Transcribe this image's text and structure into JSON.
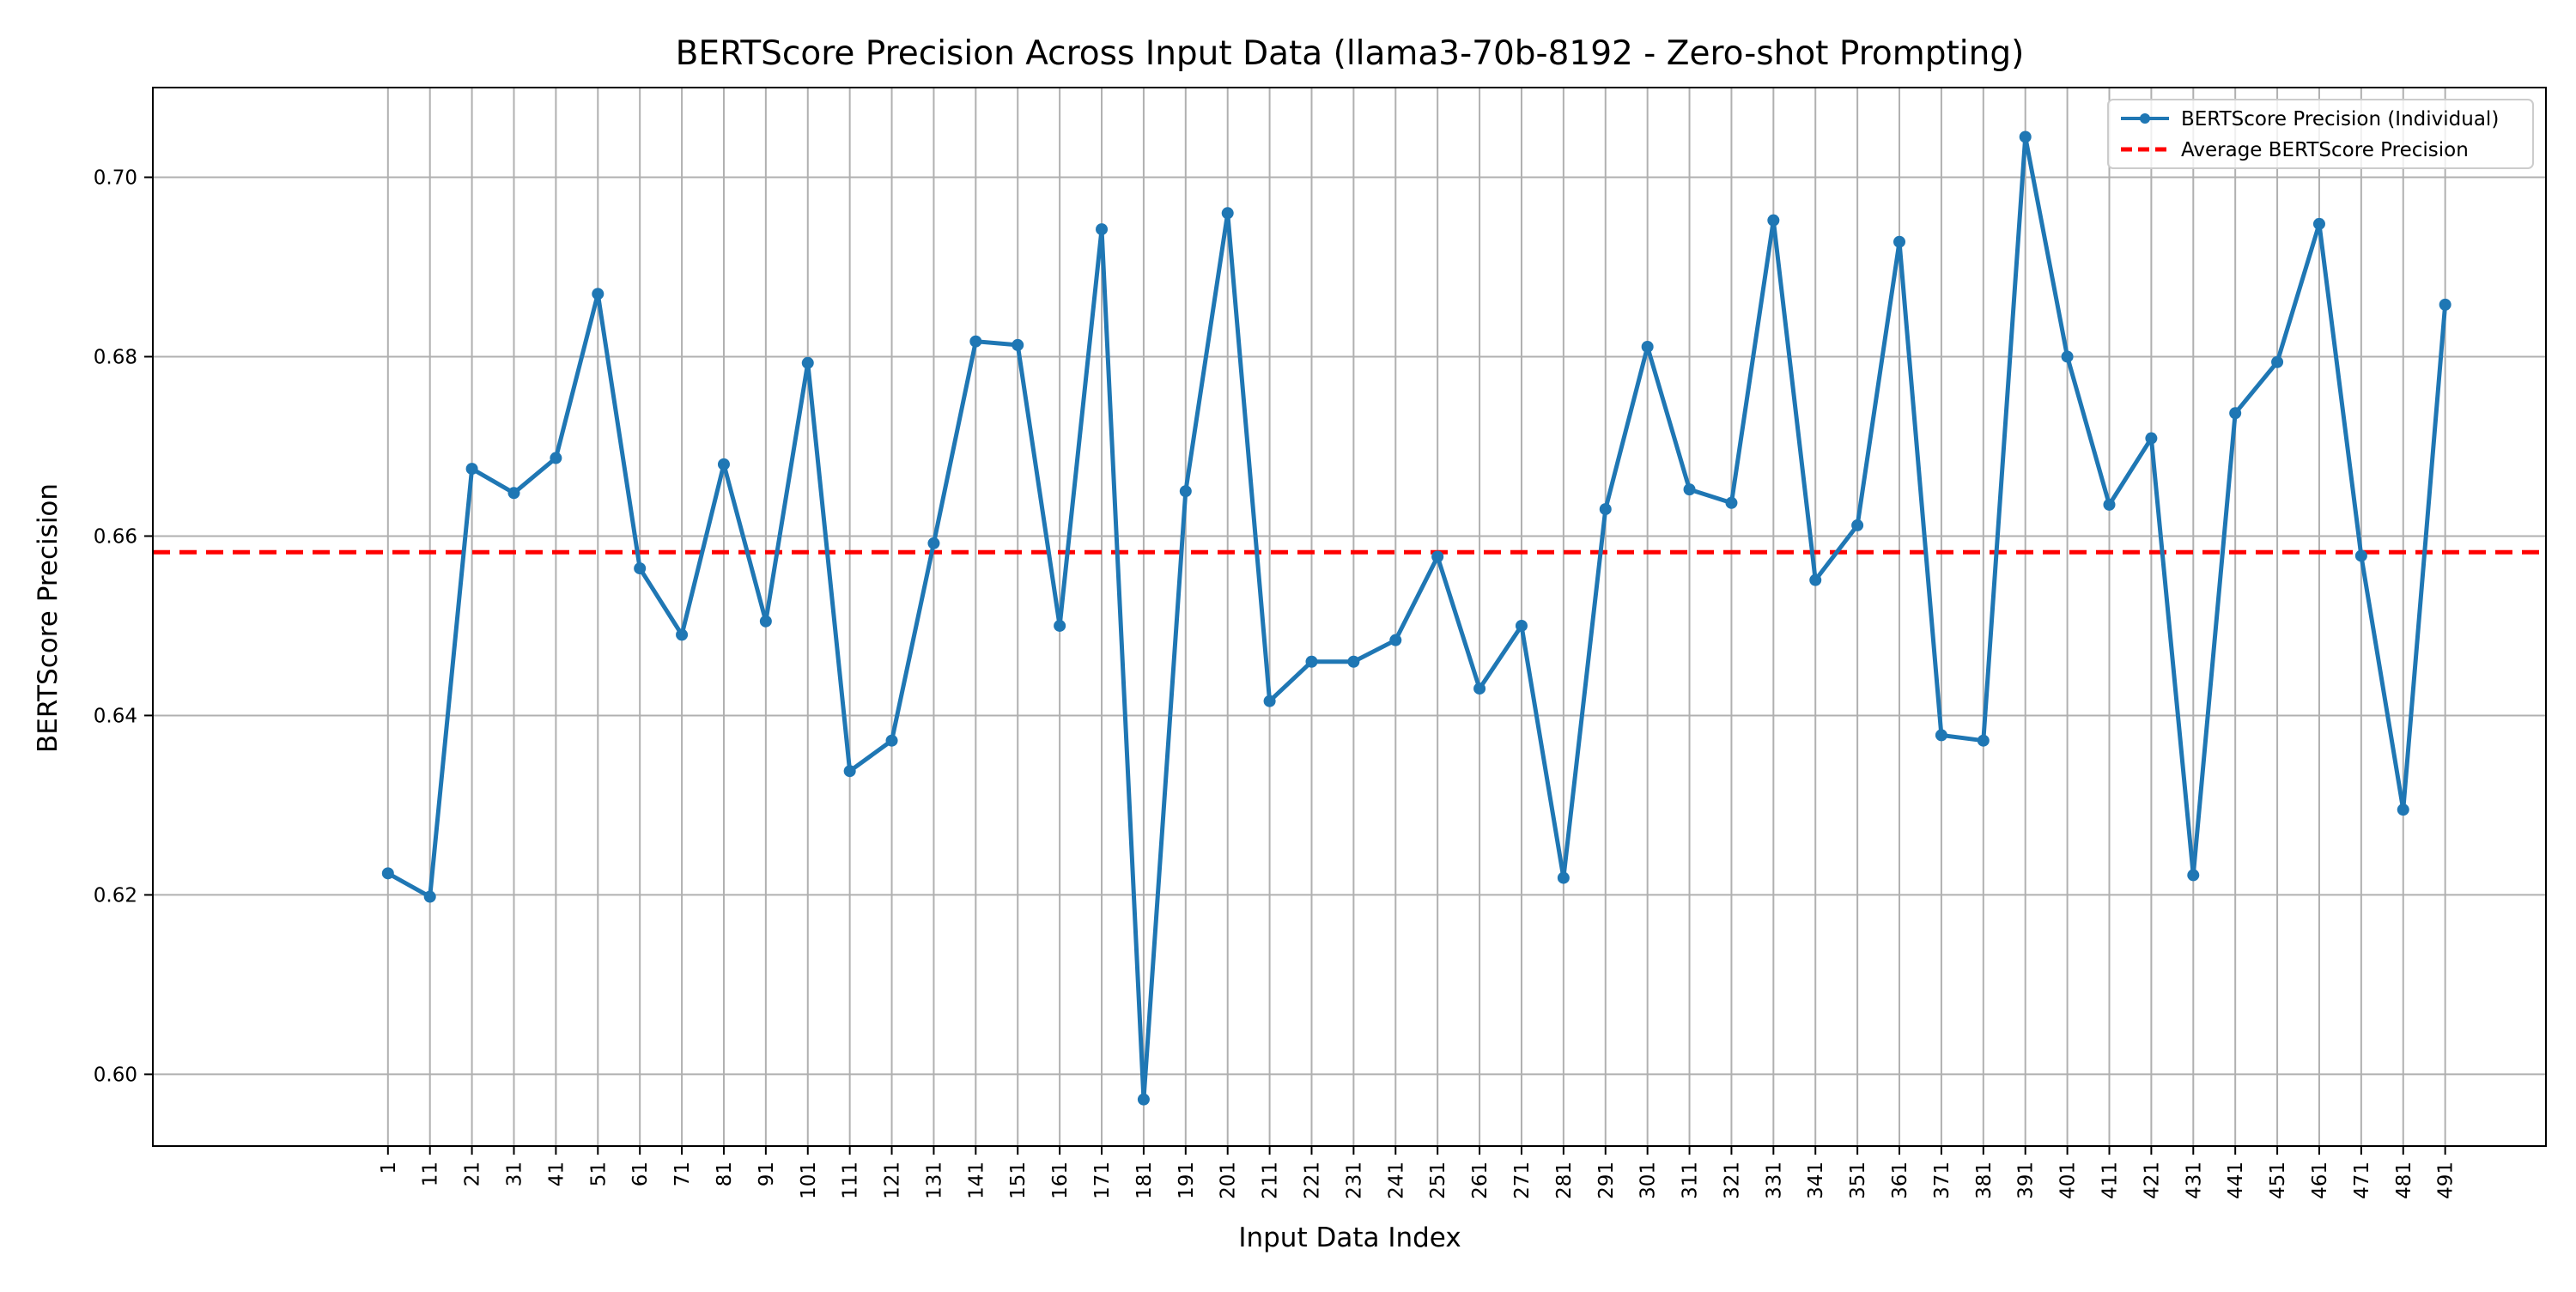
{
  "chart_data": {
    "type": "line",
    "title": "BERTScore Precision Across Input Data (llama3-70b-8192 - Zero-shot Prompting)",
    "xlabel": "Input Data Index",
    "ylabel": "BERTScore Precision",
    "x": [
      1,
      11,
      21,
      31,
      41,
      51,
      61,
      71,
      81,
      91,
      101,
      111,
      121,
      131,
      141,
      151,
      161,
      171,
      181,
      191,
      201,
      211,
      221,
      231,
      241,
      251,
      261,
      271,
      281,
      291,
      301,
      311,
      321,
      331,
      341,
      351,
      361,
      371,
      381,
      391,
      401,
      411,
      421,
      431,
      441,
      451,
      461,
      471,
      481,
      491
    ],
    "series": [
      {
        "name": "BERTScore Precision (Individual)",
        "color": "#1f77b4",
        "values": [
          0.6224,
          0.6198,
          0.6675,
          0.6648,
          0.6687,
          0.687,
          0.6564,
          0.649,
          0.668,
          0.6505,
          0.6793,
          0.6338,
          0.6372,
          0.6592,
          0.6817,
          0.6813,
          0.65,
          0.6942,
          0.5972,
          0.665,
          0.696,
          0.6416,
          0.646,
          0.646,
          0.6484,
          0.6577,
          0.643,
          0.65,
          0.6219,
          0.663,
          0.6811,
          0.6652,
          0.6637,
          0.6952,
          0.6551,
          0.6612,
          0.6928,
          0.6378,
          0.6372,
          0.7045,
          0.68,
          0.6635,
          0.6709,
          0.6222,
          0.6737,
          0.6794,
          0.6948,
          0.6578,
          0.6295,
          0.6858
        ]
      }
    ],
    "average": {
      "name": "Average BERTScore Precision",
      "value": 0.6582,
      "color": "#ff0000"
    },
    "yticks": [
      0.6,
      0.62,
      0.64,
      0.66,
      0.68,
      0.7
    ],
    "ylim": [
      0.592,
      0.71
    ],
    "xlim": [
      -55,
      515
    ],
    "grid": true,
    "legend_position": "top-right"
  }
}
